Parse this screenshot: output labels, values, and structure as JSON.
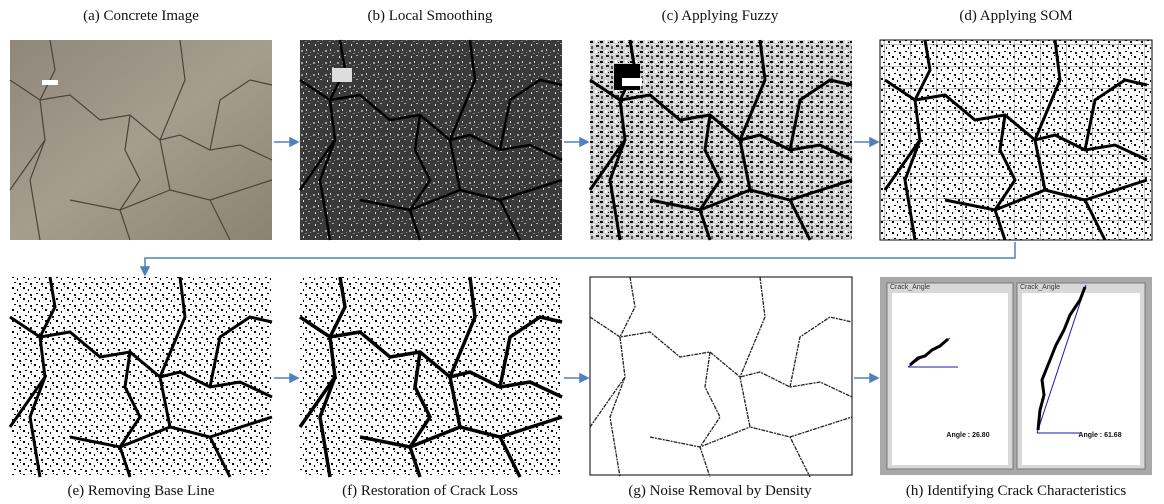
{
  "captions": [
    "(a) Concrete Image",
    "(b) Local Smoothing",
    "(c) Applying  Fuzzy",
    "(d) Applying  SOM",
    "(e) Removing  Base Line",
    "(f) Restoration  of Crack Loss",
    "(g)  Noise Removal  by Density",
    "(h)  Identifying  Crack Characteristics"
  ],
  "panel_h": {
    "windows": [
      {
        "title": "Crack_Angle",
        "angle": "Angle : 26.80"
      },
      {
        "title": "Crack_Angle",
        "angle": "Angle : 61.68"
      }
    ]
  }
}
